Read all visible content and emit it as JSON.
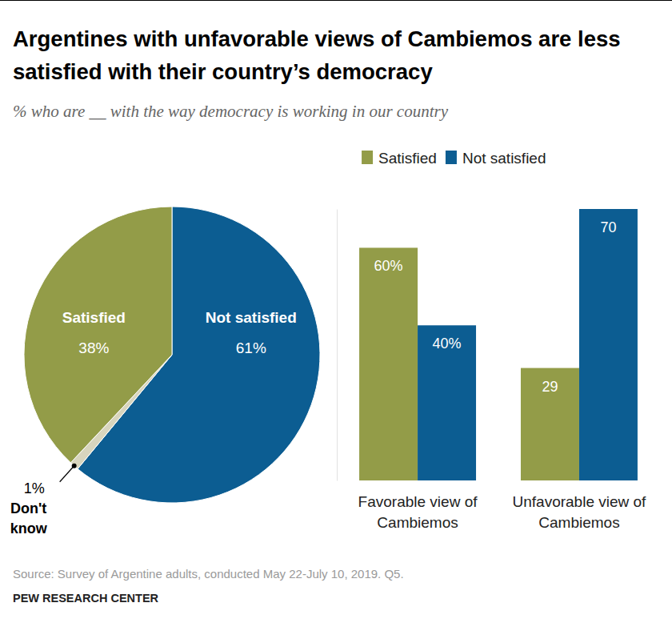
{
  "page": {
    "title": "Argentines with unfavorable views of Cambiemos are less satisfied with their country’s democracy",
    "subtitle": "% who are __ with the way democracy is working in our country",
    "source": "Source: Survey of Argentine adults, conducted May 22-July 10, 2019. Q5.",
    "credit": "PEW RESEARCH CENTER"
  },
  "chart_data": [
    {
      "type": "pie",
      "categories": [
        "Not satisfied",
        "Don't know",
        "Satisfied"
      ],
      "values": [
        61,
        1,
        38
      ],
      "value_labels": [
        "61%",
        "1%",
        "38%"
      ],
      "colors": [
        "#0c5d92",
        "#d8d5be",
        "#939c48"
      ],
      "data_labels": true
    },
    {
      "type": "bar",
      "categories": [
        "Favorable view of Cambiemos",
        "Unfavorable view of Cambiemos"
      ],
      "series": [
        {
          "name": "Satisfied",
          "color": "#939c48",
          "values": [
            60,
            29
          ],
          "value_labels": [
            "60%",
            "29"
          ]
        },
        {
          "name": "Not satisfied",
          "color": "#0c5d92",
          "values": [
            40,
            70
          ],
          "value_labels": [
            "40%",
            "70"
          ]
        }
      ],
      "ylim": [
        0,
        70
      ],
      "yticks": [],
      "tick_labels": "x",
      "data_labels": true,
      "legend": "top"
    }
  ]
}
